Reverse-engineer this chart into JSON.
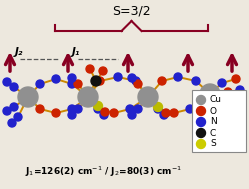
{
  "bg_color": "#ede8de",
  "title_text": "S=3/2",
  "legend_items": [
    {
      "label": "Cu",
      "color": "#909090"
    },
    {
      "label": "O",
      "color": "#cc2200"
    },
    {
      "label": "N",
      "color": "#2222cc"
    },
    {
      "label": "C",
      "color": "#111111"
    },
    {
      "label": "S",
      "color": "#cccc00"
    }
  ],
  "cu_color": "#909090",
  "o_color": "#cc2200",
  "n_color": "#2222cc",
  "c_color": "#111111",
  "s_color": "#bbbb00",
  "bond_color": "#cc8800",
  "arrow_color": "#880022",
  "j1_label": "J₁",
  "j2_label": "J₂",
  "formula": "J$_1$=126(2) cm$^{-1}$ / J$_2$=80(3) cm$^{-1}$"
}
